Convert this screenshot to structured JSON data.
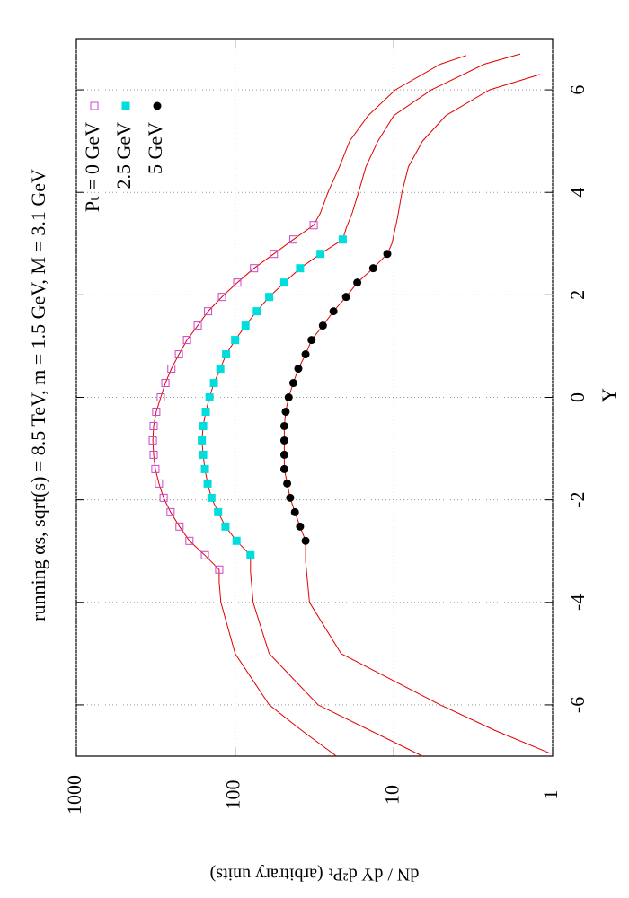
{
  "chart_data": {
    "type": "line",
    "title": "running αs, sqrt(s) = 8.5 TeV, m = 1.5 GeV, M = 3.1 GeV",
    "x_label": "Y",
    "y_label": "dN / dY d²Pₜ (arbitrary units)",
    "xlim": [
      -7,
      7
    ],
    "xticks": [
      -6,
      -4,
      -2,
      0,
      2,
      4,
      6
    ],
    "ylim": [
      1,
      1000
    ],
    "yticks": [
      1,
      10,
      100,
      1000
    ],
    "log_y": true,
    "grid": true,
    "legend": "top-right",
    "line_color": "#e00000",
    "series": [
      {
        "name": "Pₜ = 0 GeV",
        "color": "#cc44cc",
        "marker": "open-square",
        "x": [
          -3.36,
          -3.08,
          -2.8,
          -2.52,
          -2.24,
          -1.96,
          -1.68,
          -1.4,
          -1.12,
          -0.84,
          -0.56,
          -0.28,
          0,
          0.28,
          0.56,
          0.84,
          1.12,
          1.4,
          1.68,
          1.96,
          2.24,
          2.52,
          2.8,
          3.08,
          3.36
        ],
        "values": [
          126,
          155,
          194,
          224,
          255,
          282,
          302,
          318,
          326,
          330,
          326,
          314,
          294,
          275,
          252,
          226,
          201,
          172,
          148,
          121,
          97,
          76,
          57,
          43,
          32
        ],
        "tail_low": {
          "x": [
            -7,
            -6.5,
            -6,
            -5,
            -4,
            -3.6
          ],
          "values": [
            23,
            38,
            61,
            100,
            123,
            126
          ]
        },
        "tail_high": {
          "x": [
            3.6,
            4,
            4.5,
            5,
            5.5,
            6,
            6.5,
            6.67
          ],
          "values": [
            29,
            26,
            22,
            19,
            14.5,
            9.8,
            5.1,
            3.5
          ]
        }
      },
      {
        "name": "2.5 GeV",
        "color": "#00dddd",
        "marker": "filled-square",
        "x": [
          -3.08,
          -2.8,
          -2.52,
          -2.24,
          -1.96,
          -1.68,
          -1.4,
          -1.12,
          -0.84,
          -0.56,
          -0.28,
          0,
          0.28,
          0.56,
          0.84,
          1.12,
          1.4,
          1.68,
          1.96,
          2.24,
          2.52,
          2.8,
          3.08
        ],
        "values": [
          80,
          98,
          115,
          128,
          141,
          149,
          155,
          159,
          162,
          159,
          153,
          145,
          136,
          124,
          114,
          100,
          86,
          73,
          61,
          49,
          39,
          29,
          21
        ],
        "tail_low": {
          "x": [
            -7,
            -6,
            -5,
            -4,
            -3.4
          ],
          "values": [
            6.6,
            30,
            61,
            77,
            80
          ]
        },
        "tail_high": {
          "x": [
            3.3,
            3.6,
            4,
            4.5,
            5,
            5.5,
            6,
            6.5,
            6.7
          ],
          "values": [
            20,
            18.3,
            16.7,
            15,
            12.6,
            10,
            5.8,
            2.7,
            1.6
          ]
        }
      },
      {
        "name": "5 GeV",
        "color": "#000000",
        "marker": "circle",
        "x": [
          -2.8,
          -2.52,
          -2.24,
          -1.96,
          -1.68,
          -1.4,
          -1.12,
          -0.84,
          -0.56,
          -0.28,
          0,
          0.28,
          0.56,
          0.84,
          1.12,
          1.4,
          1.68,
          1.96,
          2.24,
          2.52,
          2.8
        ],
        "values": [
          36,
          39,
          42,
          45,
          47,
          49,
          49,
          49,
          49,
          48,
          46,
          43,
          40,
          36,
          33,
          28,
          24,
          20,
          17,
          13.5,
          11
        ],
        "tail_low": {
          "x": [
            -6.95,
            -6.5,
            -6,
            -5,
            -4,
            -3.2
          ],
          "values": [
            1.03,
            2.3,
            5.1,
            21.5,
            34,
            36
          ]
        },
        "tail_high": {
          "x": [
            3,
            3.5,
            4,
            4.5,
            5,
            5.5,
            6,
            6.3
          ],
          "values": [
            10.3,
            9.5,
            8.9,
            8.1,
            6.6,
            4.7,
            2.5,
            1.2
          ]
        }
      }
    ]
  }
}
